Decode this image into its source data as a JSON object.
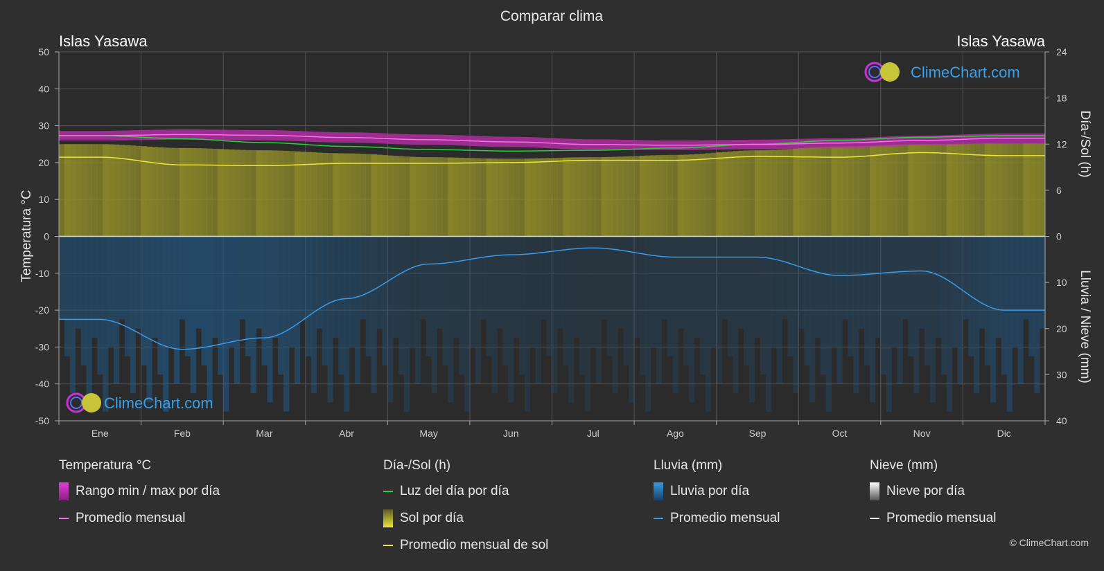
{
  "title": "Comparar clima",
  "location_left": "Islas Yasawa",
  "location_right": "Islas Yasawa",
  "watermark": "ClimeChart.com",
  "copyright": "© ClimeChart.com",
  "colors": {
    "background": "#2f2f2f",
    "temp_range": "#c02fb0",
    "temp_avg": "#ff6cf0",
    "daylight": "#2ecc40",
    "sunshine_fill": "#8d8a2a",
    "sunshine_avg": "#e8e83a",
    "rain_fill": "#1f5f93",
    "rain_avg": "#3a9be8",
    "snow_avg": "#ffffff"
  },
  "legend": {
    "temp": {
      "header": "Temperatura °C",
      "range": "Rango min / max por día",
      "avg": "Promedio mensual"
    },
    "sun": {
      "header": "Día-/Sol (h)",
      "daylight": "Luz del día por día",
      "sunshine": "Sol por día",
      "sun_avg": "Promedio mensual de sol"
    },
    "rain": {
      "header": "Lluvia (mm)",
      "rain": "Lluvia por día",
      "avg": "Promedio mensual"
    },
    "snow": {
      "header": "Nieve (mm)",
      "snow": "Nieve por día",
      "avg": "Promedio mensual"
    }
  },
  "chart_data": {
    "type": "line",
    "months": [
      "Ene",
      "Feb",
      "Mar",
      "Abr",
      "May",
      "Jun",
      "Jul",
      "Ago",
      "Sep",
      "Oct",
      "Nov",
      "Dic"
    ],
    "axes": {
      "left": {
        "label": "Temperatura °C",
        "min": -50,
        "max": 50,
        "ticks": [
          50,
          40,
          30,
          20,
          10,
          0,
          -10,
          -20,
          -30,
          -40,
          -50
        ]
      },
      "right_top": {
        "label": "Día-/Sol (h)",
        "min": 0,
        "max": 24,
        "ticks": [
          24,
          18,
          12,
          6,
          0
        ]
      },
      "right_bottom": {
        "label": "Lluvia / Nieve (mm)",
        "min": 0,
        "max": 40,
        "ticks": [
          0,
          10,
          20,
          30,
          40
        ]
      }
    },
    "grid": true,
    "series": [
      {
        "name": "Promedio mensual",
        "metric": "temperature_avg_c",
        "values": [
          27.3,
          27.6,
          27.4,
          26.8,
          26.2,
          25.6,
          24.9,
          24.7,
          24.9,
          25.3,
          26.0,
          26.6
        ]
      },
      {
        "name": "Rango min / max por día",
        "metric": "temperature_range_c",
        "min": [
          26.0,
          26.2,
          26.0,
          25.4,
          24.8,
          24.2,
          23.5,
          23.4,
          23.6,
          24.0,
          24.7,
          25.2
        ],
        "max": [
          28.6,
          29.0,
          28.8,
          28.2,
          27.6,
          27.0,
          26.3,
          26.0,
          26.2,
          26.6,
          27.3,
          27.9
        ]
      },
      {
        "name": "Luz del día por día",
        "metric": "daylight_h",
        "values": [
          13.1,
          12.7,
          12.2,
          11.7,
          11.3,
          11.1,
          11.2,
          11.5,
          12.0,
          12.5,
          12.9,
          13.1
        ]
      },
      {
        "name": "Promedio mensual de sol",
        "metric": "sunshine_h",
        "values": [
          10.3,
          9.3,
          9.2,
          9.5,
          9.5,
          9.6,
          9.9,
          9.9,
          10.4,
          10.3,
          10.9,
          10.5
        ]
      },
      {
        "name": "Sol por día",
        "metric": "sunshine_daily_h",
        "values": [
          12.0,
          11.5,
          11.2,
          10.8,
          10.3,
          10.1,
          10.3,
          10.6,
          11.2,
          11.7,
          12.0,
          12.1
        ]
      },
      {
        "name": "Lluvia promedio mensual",
        "metric": "rain_mm",
        "values": [
          18.0,
          24.5,
          22.0,
          13.5,
          6.0,
          4.0,
          2.5,
          4.5,
          4.5,
          8.5,
          7.5,
          16.0
        ]
      }
    ]
  }
}
